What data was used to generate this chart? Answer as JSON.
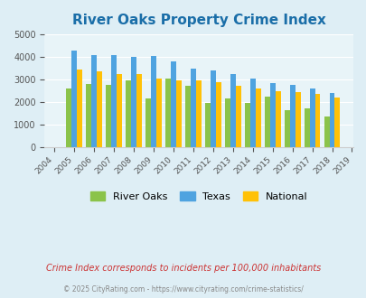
{
  "title": "River Oaks Property Crime Index",
  "years": [
    2004,
    2005,
    2006,
    2007,
    2008,
    2009,
    2010,
    2011,
    2012,
    2013,
    2014,
    2015,
    2016,
    2017,
    2018,
    2019
  ],
  "river_oaks": [
    null,
    2600,
    2800,
    2750,
    2950,
    2150,
    3050,
    2700,
    1970,
    2150,
    1970,
    2250,
    1620,
    1700,
    1340,
    null
  ],
  "texas": [
    null,
    4300,
    4080,
    4100,
    4000,
    4030,
    3800,
    3490,
    3380,
    3240,
    3040,
    2840,
    2760,
    2580,
    2390,
    null
  ],
  "national": [
    null,
    3450,
    3350,
    3240,
    3220,
    3050,
    2950,
    2940,
    2880,
    2730,
    2600,
    2490,
    2440,
    2350,
    2200,
    null
  ],
  "river_oaks_color": "#8bc34a",
  "texas_color": "#4fa3e0",
  "national_color": "#ffc107",
  "bg_color": "#deeef5",
  "plot_bg": "#e8f4f8",
  "ylim": [
    0,
    5000
  ],
  "yticks": [
    0,
    1000,
    2000,
    3000,
    4000,
    5000
  ],
  "subtitle": "Crime Index corresponds to incidents per 100,000 inhabitants",
  "footer": "© 2025 CityRating.com - https://www.cityrating.com/crime-statistics/",
  "title_color": "#1a6ea8",
  "subtitle_color": "#cc3333",
  "footer_color": "#888888"
}
